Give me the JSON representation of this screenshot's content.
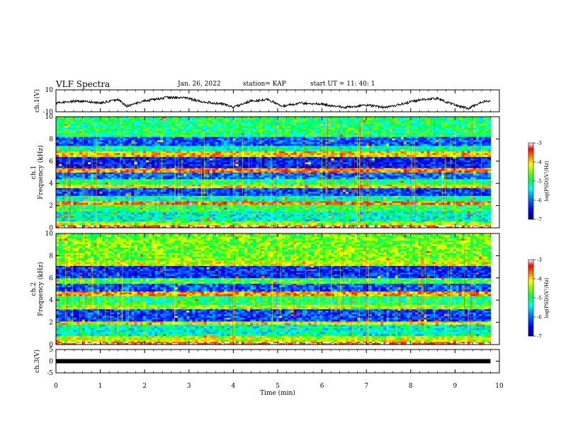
{
  "header": {
    "title": "VLF Spectra",
    "date": "Jan. 26, 2022",
    "station": "station= KAP",
    "start": "start UT =  11: 40: 1"
  },
  "colors": {
    "colormap": [
      "#00007f",
      "#0000ff",
      "#007fff",
      "#00ffff",
      "#00ff40",
      "#7fff00",
      "#ffff00",
      "#ff7f00",
      "#ff0000",
      "#ffffff"
    ],
    "trace": "#000000",
    "frame": "#000000"
  },
  "chart_data": [
    {
      "type": "line",
      "panel": "waveform-ch1",
      "ylabel": "ch.1(V)",
      "ylim": [
        -10,
        10
      ],
      "yticks": [
        "10",
        "-10"
      ],
      "xlim": [
        0,
        10
      ],
      "x": [
        0,
        0.5,
        1.0,
        1.4,
        1.6,
        2.0,
        2.5,
        2.9,
        3.2,
        3.5,
        3.8,
        4.0,
        4.4,
        4.8,
        5.1,
        5.5,
        6.0,
        6.5,
        7.0,
        7.4,
        7.8,
        8.2,
        8.6,
        9.0,
        9.3,
        9.6,
        9.8
      ],
      "y": [
        -2,
        0,
        -2,
        1,
        -5,
        0,
        3,
        3,
        0,
        -2,
        -3,
        -6,
        0,
        1,
        -5,
        -2,
        -3,
        -6,
        -4,
        -6,
        -3,
        1,
        2,
        -4,
        -7,
        -1,
        0
      ]
    },
    {
      "type": "heatmap",
      "panel": "spectrogram-ch1",
      "ylabel": "ch.1\nFrequency (kHz)",
      "ylim": [
        0,
        10
      ],
      "yticks": [
        "0",
        "2",
        "4",
        "6",
        "8",
        "10"
      ],
      "xlim": [
        0,
        10
      ],
      "colorbar": {
        "label": "log(PSD)(V²/Hz)",
        "range": [
          -7,
          -3
        ],
        "ticks": [
          "-3",
          "-4",
          "-5",
          "-6",
          "-7"
        ]
      },
      "bands": [
        {
          "f": [
            0.0,
            0.25
          ],
          "level": -3.2
        },
        {
          "f": [
            0.25,
            0.6
          ],
          "level": -4.4
        },
        {
          "f": [
            0.6,
            1.5
          ],
          "level": -5.3
        },
        {
          "f": [
            1.5,
            2.1
          ],
          "level": -4.9
        },
        {
          "f": [
            2.1,
            2.4
          ],
          "level": -3.6
        },
        {
          "f": [
            2.4,
            2.9
          ],
          "level": -5.2
        },
        {
          "f": [
            2.9,
            3.6
          ],
          "level": -6.2
        },
        {
          "f": [
            3.6,
            3.9
          ],
          "level": -4.1
        },
        {
          "f": [
            3.9,
            4.4
          ],
          "level": -5.0
        },
        {
          "f": [
            4.4,
            5.0
          ],
          "level": -6.0
        },
        {
          "f": [
            5.0,
            5.4
          ],
          "level": -3.7
        },
        {
          "f": [
            5.4,
            6.4
          ],
          "level": -6.4
        },
        {
          "f": [
            6.4,
            6.9
          ],
          "level": -4.0
        },
        {
          "f": [
            6.9,
            7.4
          ],
          "level": -5.2
        },
        {
          "f": [
            7.4,
            8.2
          ],
          "level": -6.1
        },
        {
          "f": [
            8.2,
            10.0
          ],
          "level": -5.0
        }
      ]
    },
    {
      "type": "heatmap",
      "panel": "spectrogram-ch2",
      "ylabel": "ch.2\nFrequency (kHz)",
      "ylim": [
        0,
        10
      ],
      "yticks": [
        "0",
        "2",
        "4",
        "6",
        "8",
        "10"
      ],
      "xlim": [
        0,
        10
      ],
      "colorbar": {
        "label": "log(PSD)(V²/Hz)",
        "range": [
          -7,
          -3
        ],
        "ticks": [
          "-3",
          "-4",
          "-5",
          "-6",
          "-7"
        ]
      },
      "bands": [
        {
          "f": [
            0.0,
            0.25
          ],
          "level": -3.2
        },
        {
          "f": [
            0.25,
            0.8
          ],
          "level": -4.3
        },
        {
          "f": [
            0.8,
            1.8
          ],
          "level": -5.3
        },
        {
          "f": [
            1.8,
            2.1
          ],
          "level": -4.1
        },
        {
          "f": [
            2.1,
            3.2
          ],
          "level": -6.2
        },
        {
          "f": [
            3.2,
            3.6
          ],
          "level": -4.4
        },
        {
          "f": [
            3.6,
            4.4
          ],
          "level": -5.0
        },
        {
          "f": [
            4.4,
            4.8
          ],
          "level": -3.8
        },
        {
          "f": [
            4.8,
            5.5
          ],
          "level": -6.1
        },
        {
          "f": [
            5.5,
            6.0
          ],
          "level": -4.8
        },
        {
          "f": [
            6.0,
            7.1
          ],
          "level": -6.3
        },
        {
          "f": [
            7.1,
            7.6
          ],
          "level": -4.3
        },
        {
          "f": [
            7.6,
            10.0
          ],
          "level": -4.6
        }
      ]
    },
    {
      "type": "line",
      "panel": "waveform-ch3",
      "ylabel": "ch.3(V)",
      "ylim": [
        -5,
        5
      ],
      "yticks": [
        "5",
        "0",
        "-5"
      ],
      "xlim": [
        0,
        10
      ],
      "x": [
        0,
        9.8
      ],
      "y": [
        0,
        0
      ]
    }
  ],
  "xaxis": {
    "label": "Time (min)",
    "ticks": [
      "0",
      "1",
      "2",
      "3",
      "4",
      "5",
      "6",
      "7",
      "8",
      "9",
      "10"
    ]
  }
}
